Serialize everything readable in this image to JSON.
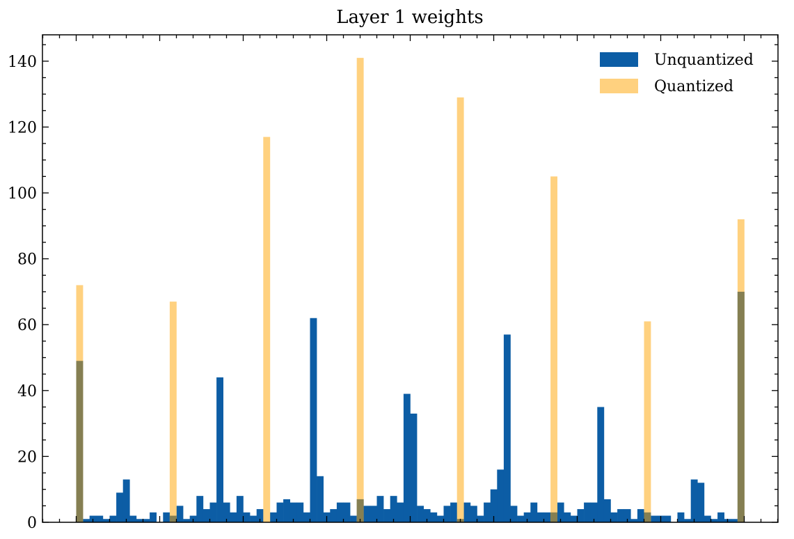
{
  "chart_data": {
    "type": "bar",
    "title": "Layer 1 weights",
    "xlabel": "",
    "ylabel": "",
    "ylim": [
      0,
      148
    ],
    "yticks": [
      "0",
      "20",
      "40",
      "60",
      "80",
      "100",
      "120",
      "140"
    ],
    "xtick_labels_visible": false,
    "legend_placement": "top-right",
    "bins": 100,
    "series": [
      {
        "name": "Unquantized",
        "color": "#0C5DA5",
        "values": [
          49,
          1,
          2,
          2,
          1,
          2,
          9,
          13,
          2,
          1,
          1,
          3,
          0,
          3,
          2,
          5,
          1,
          2,
          8,
          4,
          6,
          44,
          6,
          3,
          8,
          3,
          2,
          4,
          0,
          3,
          6,
          7,
          6,
          6,
          3,
          62,
          14,
          3,
          4,
          6,
          6,
          2,
          7,
          5,
          5,
          8,
          4,
          8,
          6,
          39,
          33,
          5,
          4,
          3,
          2,
          5,
          6,
          1,
          6,
          5,
          2,
          6,
          10,
          16,
          57,
          5,
          2,
          3,
          6,
          3,
          3,
          3,
          6,
          3,
          2,
          4,
          6,
          6,
          35,
          7,
          3,
          4,
          4,
          1,
          4,
          3,
          2,
          2,
          2,
          0,
          3,
          1,
          13,
          12,
          2,
          1,
          3,
          1,
          1,
          70
        ]
      },
      {
        "name": "Quantized",
        "color": "#FFD17F",
        "bin_indices": [
          0,
          14,
          28,
          42,
          57,
          71,
          85,
          99
        ],
        "values": [
          72,
          67,
          117,
          141,
          129,
          105,
          61,
          92
        ]
      }
    ],
    "overlap_color": "#857F52"
  }
}
